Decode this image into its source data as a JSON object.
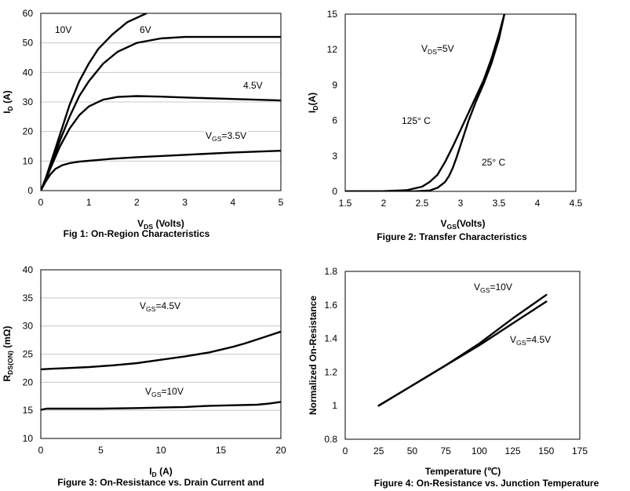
{
  "chart_data": [
    {
      "type": "line",
      "caption": "Fig 1: On-Region Characteristics",
      "xlabel": {
        "main": "V",
        "sub": "DS",
        "rest": " (Volts)"
      },
      "ylabel": {
        "main": "I",
        "sub": "D",
        "rest": " (A)"
      },
      "xlim": [
        0,
        5
      ],
      "ylim": [
        0,
        60
      ],
      "xticks": [
        0,
        1,
        2,
        3,
        4,
        5
      ],
      "yticks": [
        0,
        10,
        20,
        30,
        40,
        50,
        60
      ],
      "grid": true,
      "series": [
        {
          "name": "10V",
          "x": [
            0,
            0.1,
            0.2,
            0.4,
            0.6,
            0.8,
            1.0,
            1.2,
            1.5,
            1.8,
            2.2
          ],
          "y": [
            0,
            4,
            9,
            19,
            29,
            37,
            43,
            48,
            53,
            57,
            60
          ]
        },
        {
          "name": "6V",
          "x": [
            0,
            0.1,
            0.2,
            0.4,
            0.6,
            0.8,
            1.0,
            1.3,
            1.6,
            2.0,
            2.5,
            3.0,
            4.0,
            5.0
          ],
          "y": [
            0,
            4,
            8,
            17,
            25,
            32,
            37,
            43,
            47,
            50,
            51.5,
            52,
            52,
            52
          ]
        },
        {
          "name": "4.5V",
          "x": [
            0,
            0.1,
            0.2,
            0.4,
            0.6,
            0.8,
            1.0,
            1.3,
            1.6,
            2.0,
            2.5,
            3.0,
            4.0,
            5.0
          ],
          "y": [
            0,
            3.5,
            7.5,
            15,
            21,
            25.5,
            28.5,
            30.8,
            31.7,
            32,
            31.8,
            31.5,
            31,
            30.5
          ]
        },
        {
          "name": {
            "main": "V",
            "sub": "GS",
            "rest": "=3.5V"
          },
          "x": [
            0,
            0.1,
            0.2,
            0.3,
            0.45,
            0.6,
            0.8,
            1.0,
            1.5,
            2.0,
            3.0,
            4.0,
            5.0
          ],
          "y": [
            0,
            3,
            5.5,
            7.3,
            8.6,
            9.3,
            9.8,
            10.1,
            10.8,
            11.3,
            12.1,
            12.9,
            13.5
          ]
        }
      ]
    },
    {
      "type": "line",
      "caption": "Figure 2: Transfer Characteristics",
      "xlabel": {
        "main": "V",
        "sub": "GS",
        "rest": "(Volts)"
      },
      "ylabel": {
        "main": "I",
        "sub": "D",
        "rest": "(A)"
      },
      "xlim": [
        1.5,
        4.5
      ],
      "ylim": [
        0,
        15
      ],
      "xticks": [
        1.5,
        2,
        2.5,
        3,
        3.5,
        4,
        4.5
      ],
      "yticks": [
        0,
        3,
        6,
        9,
        12,
        15
      ],
      "grid": false,
      "annotation": {
        "main": "V",
        "sub": "DS",
        "rest": "=5V"
      },
      "series": [
        {
          "name": "125° C",
          "x": [
            1.5,
            2.0,
            2.3,
            2.5,
            2.6,
            2.7,
            2.8,
            2.9,
            3.0,
            3.1,
            3.2,
            3.3,
            3.4,
            3.5,
            3.57
          ],
          "y": [
            0,
            0.02,
            0.1,
            0.4,
            0.8,
            1.4,
            2.5,
            3.8,
            5.2,
            6.6,
            8.0,
            9.4,
            11.2,
            13.3,
            15
          ]
        },
        {
          "name": "25° C",
          "x": [
            1.5,
            2.4,
            2.6,
            2.7,
            2.8,
            2.85,
            2.9,
            2.95,
            3.0,
            3.05,
            3.1,
            3.2,
            3.3,
            3.4,
            3.5,
            3.57
          ],
          "y": [
            0,
            0,
            0.08,
            0.3,
            0.8,
            1.3,
            2.0,
            2.9,
            3.9,
            4.9,
            5.9,
            7.6,
            9.1,
            10.8,
            12.9,
            15
          ]
        }
      ]
    },
    {
      "type": "line",
      "caption": "Figure 3: On-Resistance vs. Drain Current and",
      "xlabel": {
        "main": "I",
        "sub": "D",
        "rest": " (A)"
      },
      "ylabel": {
        "main": "R",
        "sub": "DS(ON)",
        "rest": " (mΩ)"
      },
      "xlim": [
        0,
        20
      ],
      "ylim": [
        10,
        40
      ],
      "xticks": [
        0,
        5,
        10,
        15,
        20
      ],
      "yticks": [
        10,
        15,
        20,
        25,
        30,
        35,
        40
      ],
      "grid": true,
      "series": [
        {
          "name": {
            "main": "V",
            "sub": "GS",
            "rest": "=4.5V"
          },
          "x": [
            0,
            1,
            2,
            4,
            6,
            8,
            10,
            12,
            14,
            15,
            16,
            17,
            18,
            19,
            20
          ],
          "y": [
            22.3,
            22.4,
            22.5,
            22.7,
            23.0,
            23.4,
            24.0,
            24.6,
            25.3,
            25.8,
            26.3,
            26.9,
            27.6,
            28.3,
            29.0
          ]
        },
        {
          "name": {
            "main": "V",
            "sub": "GS",
            "rest": "=10V"
          },
          "x": [
            0,
            0.5,
            2,
            5,
            8,
            10,
            12,
            14,
            16,
            18,
            19,
            20
          ],
          "y": [
            15.1,
            15.3,
            15.3,
            15.3,
            15.4,
            15.5,
            15.6,
            15.8,
            15.9,
            16.0,
            16.2,
            16.5
          ]
        }
      ]
    },
    {
      "type": "line",
      "caption": "Figure 4: On-Resistance vs. Junction Temperature",
      "xlabel": {
        "main": "Temperature (℃)",
        "sub": "",
        "rest": ""
      },
      "ylabel": {
        "main": "Normalized On-Resistance",
        "sub": "",
        "rest": ""
      },
      "xlim": [
        0,
        175
      ],
      "ylim": [
        0.8,
        1.8
      ],
      "xticks": [
        0,
        25,
        50,
        75,
        100,
        125,
        150,
        175
      ],
      "yticks": [
        0.8,
        1,
        1.2,
        1.4,
        1.6,
        1.8
      ],
      "grid": false,
      "series": [
        {
          "name": {
            "main": "V",
            "sub": "GS",
            "rest": "=10V"
          },
          "x": [
            25,
            50,
            75,
            100,
            125,
            150
          ],
          "y": [
            1.0,
            1.12,
            1.24,
            1.37,
            1.52,
            1.66
          ]
        },
        {
          "name": {
            "main": "V",
            "sub": "GS",
            "rest": "=4.5V"
          },
          "x": [
            25,
            50,
            75,
            100,
            125,
            150
          ],
          "y": [
            1.0,
            1.12,
            1.24,
            1.36,
            1.49,
            1.62
          ]
        }
      ]
    }
  ]
}
